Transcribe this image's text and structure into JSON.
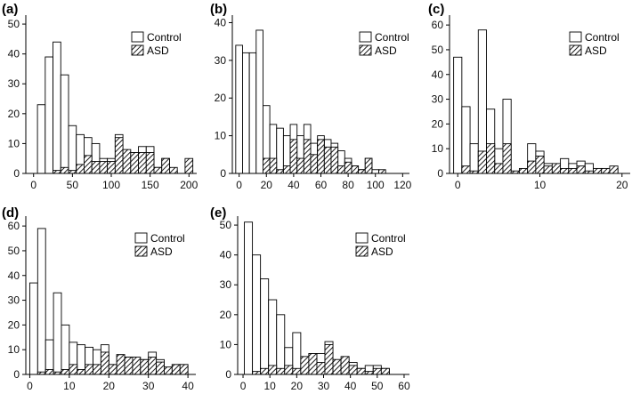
{
  "legend": {
    "control": "Control",
    "asd": "ASD"
  },
  "chart_data": [
    {
      "type": "bar",
      "panel_label": "(a)",
      "xticks": [
        0,
        50,
        100,
        150,
        200
      ],
      "yticks": [
        0,
        10,
        20,
        30,
        40,
        50
      ],
      "xlim": [
        -10,
        210
      ],
      "ylim": [
        0,
        53
      ],
      "bin_width": 10,
      "series": [
        {
          "name": "Control",
          "x": [
            10,
            20,
            30,
            40,
            50,
            60,
            70,
            80,
            90,
            100,
            110,
            120,
            130,
            140,
            150,
            160,
            170,
            180,
            190,
            200
          ],
          "values": [
            23,
            39,
            44,
            33,
            16,
            13,
            12,
            10,
            5,
            5,
            13,
            7,
            7,
            9,
            9,
            2,
            5,
            1,
            0,
            0
          ]
        },
        {
          "name": "ASD",
          "x": [
            10,
            20,
            30,
            40,
            50,
            60,
            70,
            80,
            90,
            100,
            110,
            120,
            130,
            140,
            150,
            160,
            170,
            180,
            190,
            200
          ],
          "values": [
            0,
            0,
            1,
            2,
            1,
            3,
            6,
            4,
            4,
            4,
            12,
            8,
            7,
            7,
            7,
            2,
            5,
            2,
            0,
            5
          ]
        }
      ]
    },
    {
      "type": "bar",
      "panel_label": "(b)",
      "xticks": [
        0,
        20,
        40,
        60,
        80,
        100,
        120
      ],
      "yticks": [
        0,
        10,
        20,
        30,
        40
      ],
      "xlim": [
        -5,
        125
      ],
      "ylim": [
        0,
        42
      ],
      "bin_width": 5,
      "series": [
        {
          "name": "Control",
          "x": [
            0,
            5,
            10,
            15,
            20,
            25,
            30,
            35,
            40,
            45,
            50,
            55,
            60,
            65,
            70,
            75,
            80,
            85,
            90,
            95,
            100,
            105
          ],
          "values": [
            34,
            32,
            32,
            38,
            18,
            13,
            12,
            10,
            13,
            10,
            13,
            8,
            10,
            9,
            8,
            6,
            4,
            2,
            1,
            4,
            1,
            0
          ]
        },
        {
          "name": "ASD",
          "x": [
            0,
            5,
            10,
            15,
            20,
            25,
            30,
            35,
            40,
            45,
            50,
            55,
            60,
            65,
            70,
            75,
            80,
            85,
            90,
            95,
            100,
            105
          ],
          "values": [
            0,
            0,
            0,
            0,
            4,
            4,
            1,
            2,
            9,
            4,
            9,
            5,
            9,
            7,
            7,
            2,
            3,
            2,
            1,
            4,
            0,
            1
          ]
        }
      ]
    },
    {
      "type": "bar",
      "panel_label": "(c)",
      "xticks": [
        0,
        10,
        20
      ],
      "yticks": [
        0,
        10,
        20,
        30,
        40,
        50,
        60
      ],
      "xlim": [
        -1,
        21
      ],
      "ylim": [
        0,
        64
      ],
      "bin_width": 1,
      "series": [
        {
          "name": "Control",
          "x": [
            0,
            1,
            2,
            3,
            4,
            5,
            6,
            7,
            8,
            9,
            10,
            11,
            12,
            13,
            14,
            15,
            16,
            17,
            18,
            19
          ],
          "values": [
            47,
            27,
            12,
            58,
            26,
            10,
            30,
            0,
            0,
            12,
            9,
            4,
            2,
            6,
            4,
            5,
            4,
            2,
            2,
            2
          ]
        },
        {
          "name": "ASD",
          "x": [
            0,
            1,
            2,
            3,
            4,
            5,
            6,
            7,
            8,
            9,
            10,
            11,
            12,
            13,
            14,
            15,
            16,
            17,
            18,
            19
          ],
          "values": [
            0,
            3,
            1,
            9,
            12,
            4,
            12,
            1,
            2,
            5,
            7,
            3,
            4,
            2,
            2,
            3,
            1,
            2,
            2,
            3
          ]
        }
      ]
    },
    {
      "type": "bar",
      "panel_label": "(d)",
      "xticks": [
        0,
        10,
        20,
        30,
        40
      ],
      "yticks": [
        0,
        10,
        20,
        30,
        40,
        50,
        60
      ],
      "xlim": [
        -1,
        42
      ],
      "ylim": [
        0,
        64
      ],
      "bin_width": 2,
      "series": [
        {
          "name": "Control",
          "x": [
            1,
            3,
            5,
            7,
            9,
            11,
            13,
            15,
            17,
            19,
            21,
            23,
            25,
            27,
            29,
            31,
            33,
            35,
            37,
            39
          ],
          "values": [
            37,
            59,
            14,
            33,
            20,
            13,
            12,
            11,
            10,
            12,
            4,
            8,
            7,
            6,
            6,
            9,
            6,
            1,
            4,
            4
          ]
        },
        {
          "name": "ASD",
          "x": [
            1,
            3,
            5,
            7,
            9,
            11,
            13,
            15,
            17,
            19,
            21,
            23,
            25,
            27,
            29,
            31,
            33,
            35,
            37,
            39
          ],
          "values": [
            0,
            1,
            2,
            1,
            2,
            4,
            2,
            4,
            4,
            9,
            4,
            8,
            7,
            7,
            6,
            7,
            5,
            3,
            4,
            4
          ]
        }
      ]
    },
    {
      "type": "bar",
      "panel_label": "(e)",
      "xticks": [
        0,
        10,
        20,
        30,
        40,
        50,
        60
      ],
      "yticks": [
        0,
        10,
        20,
        30,
        40,
        50
      ],
      "xlim": [
        -2,
        62
      ],
      "ylim": [
        0,
        53
      ],
      "bin_width": 3,
      "series": [
        {
          "name": "Control",
          "x": [
            2,
            5,
            8,
            11,
            14,
            17,
            20,
            23,
            26,
            29,
            32,
            35,
            38,
            41,
            44,
            47,
            50,
            53
          ],
          "values": [
            51,
            40,
            32,
            25,
            20,
            9,
            14,
            4,
            7,
            7,
            11,
            4,
            5,
            4,
            2,
            3,
            3,
            2
          ]
        },
        {
          "name": "ASD",
          "x": [
            2,
            5,
            8,
            11,
            14,
            17,
            20,
            23,
            26,
            29,
            32,
            35,
            38,
            41,
            44,
            47,
            50,
            53
          ],
          "values": [
            0,
            1,
            2,
            3,
            2,
            3,
            2,
            6,
            7,
            4,
            10,
            5,
            6,
            3,
            2,
            1,
            2,
            2
          ]
        }
      ]
    }
  ]
}
